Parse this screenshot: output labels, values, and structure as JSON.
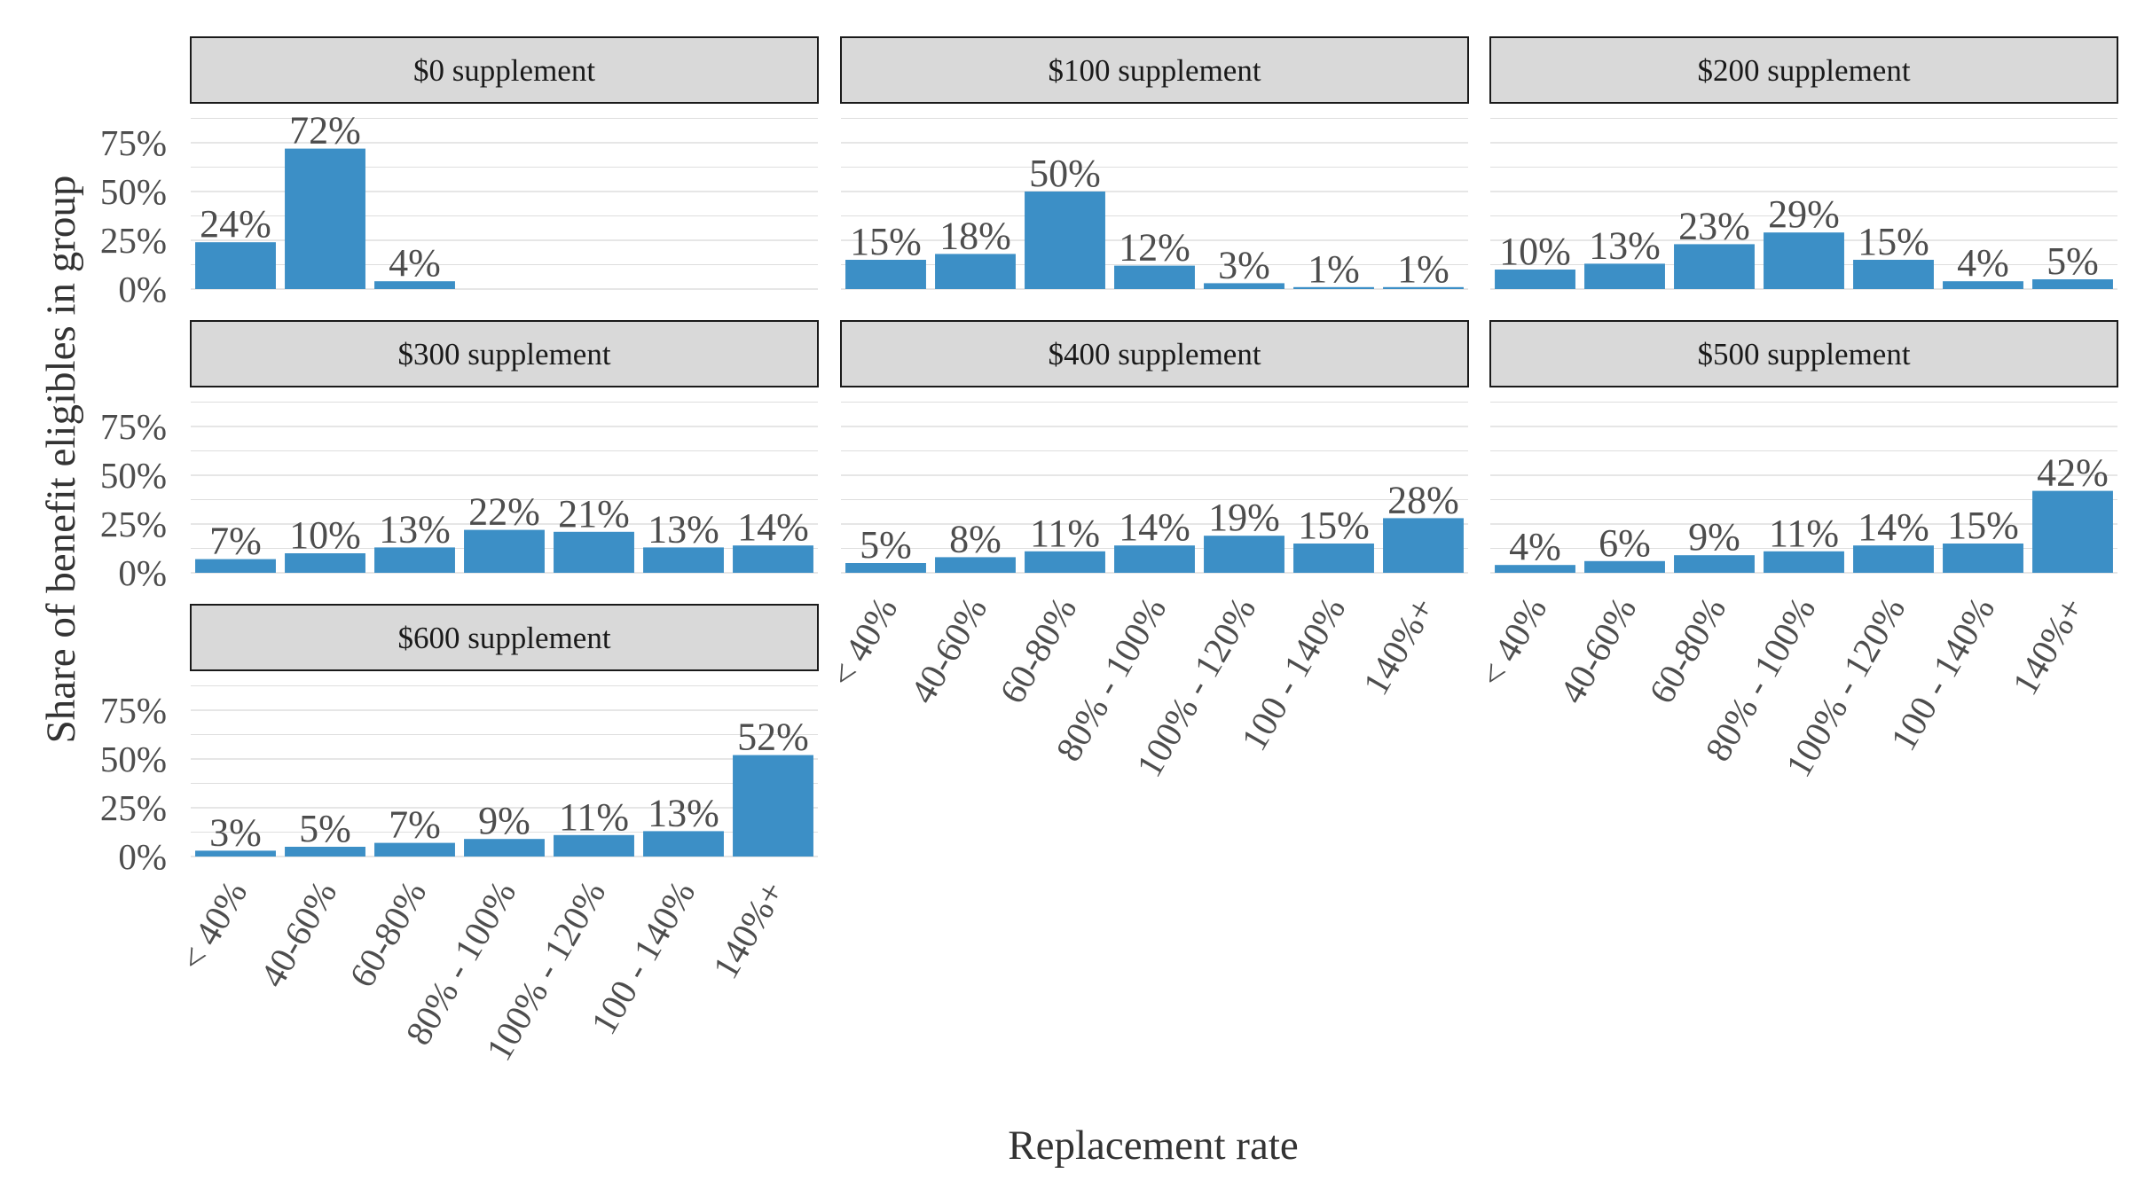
{
  "chart_data": {
    "type": "bar",
    "facet_by": "supplement",
    "xlabel": "Replacement rate",
    "ylabel": "Share of benefit eligibles in group",
    "categories": [
      "< 40%",
      "40-60%",
      "60-80%",
      "80% - 100%",
      "100% - 120%",
      "100 - 140%",
      "140%+"
    ],
    "ylim": [
      0,
      0.9
    ],
    "yticks": [
      0,
      0.25,
      0.5,
      0.75
    ],
    "ytick_labels": [
      "0%",
      "25%",
      "50%",
      "75%"
    ],
    "grid": "horizontal",
    "bar_color": "#3C8FC6",
    "strip_color": "#D9D9D9",
    "panels": [
      {
        "title": "$0 supplement",
        "values": [
          0.24,
          0.72,
          0.04
        ],
        "labels": [
          "24%",
          "72%",
          "4%"
        ]
      },
      {
        "title": "$100 supplement",
        "values": [
          0.15,
          0.18,
          0.5,
          0.12,
          0.03,
          0.01,
          0.01
        ],
        "labels": [
          "15%",
          "18%",
          "50%",
          "12%",
          "3%",
          "1%",
          "1%"
        ]
      },
      {
        "title": "$200 supplement",
        "values": [
          0.1,
          0.13,
          0.23,
          0.29,
          0.15,
          0.04,
          0.05
        ],
        "labels": [
          "10%",
          "13%",
          "23%",
          "29%",
          "15%",
          "4%",
          "5%"
        ]
      },
      {
        "title": "$300 supplement",
        "values": [
          0.07,
          0.1,
          0.13,
          0.22,
          0.21,
          0.13,
          0.14
        ],
        "labels": [
          "7%",
          "10%",
          "13%",
          "22%",
          "21%",
          "13%",
          "14%"
        ]
      },
      {
        "title": "$400 supplement",
        "values": [
          0.05,
          0.08,
          0.11,
          0.14,
          0.19,
          0.15,
          0.28
        ],
        "labels": [
          "5%",
          "8%",
          "11%",
          "14%",
          "19%",
          "15%",
          "28%"
        ]
      },
      {
        "title": "$500 supplement",
        "values": [
          0.04,
          0.06,
          0.09,
          0.11,
          0.14,
          0.15,
          0.42
        ],
        "labels": [
          "4%",
          "6%",
          "9%",
          "11%",
          "14%",
          "15%",
          "42%"
        ]
      },
      {
        "title": "$600 supplement",
        "values": [
          0.03,
          0.05,
          0.07,
          0.09,
          0.11,
          0.13,
          0.52
        ],
        "labels": [
          "3%",
          "5%",
          "7%",
          "9%",
          "11%",
          "13%",
          "52%"
        ]
      }
    ]
  }
}
